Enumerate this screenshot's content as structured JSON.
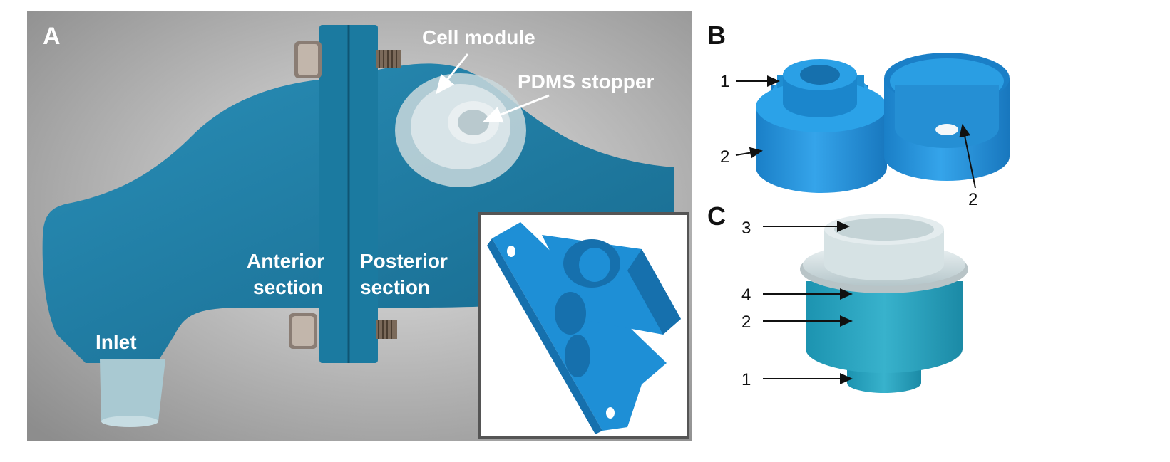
{
  "panels": {
    "a": {
      "letter": "A",
      "labels": {
        "cell_module": "Cell module",
        "pdms_stopper": "PDMS stopper",
        "anterior_1": "Anterior",
        "anterior_2": "section",
        "posterior_1": "Posterior",
        "posterior_2": "section",
        "inlet": "Inlet"
      }
    },
    "b": {
      "letter": "B",
      "callouts": [
        "1",
        "2",
        "2"
      ]
    },
    "c": {
      "letter": "C",
      "callouts": [
        "3",
        "4",
        "2",
        "1"
      ]
    }
  },
  "colors": {
    "part_blue": "#1e8fd6",
    "part_blue_dark": "#1670ad",
    "photo_blue": "#1a7ea8",
    "background_gray": "#b9b9b9",
    "silicone_clear": "#d9e4e6"
  }
}
